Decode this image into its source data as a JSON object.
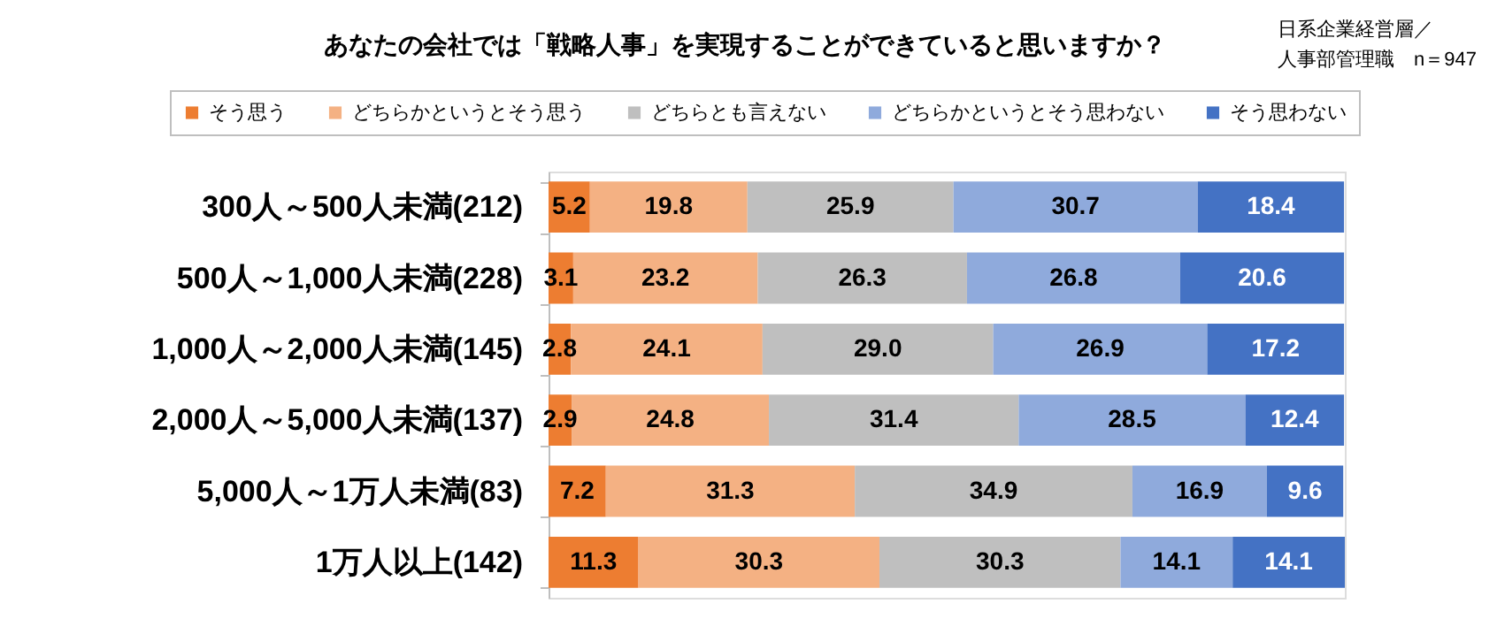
{
  "chart_data": {
    "type": "bar",
    "orientation": "horizontal",
    "stacked": true,
    "title": "あなたの会社では「戦略人事」を実現することができていると思いますか？",
    "annotations": [
      "日系企業経営層／",
      "人事部管理職　n＝947"
    ],
    "categories": [
      "300人～500人未満(212)",
      "500人～1,000人未満(228)",
      "1,000人～2,000人未満(145)",
      "2,000人～5,000人未満(137)",
      "5,000人～1万人未満(83)",
      "1万人以上(142)"
    ],
    "series": [
      {
        "name": "そう思う",
        "color": "#ed7d31",
        "values": [
          5.2,
          3.1,
          2.8,
          2.9,
          7.2,
          11.3
        ],
        "value_labels": [
          "5.2",
          "3.1",
          "2.8",
          "2.9",
          "7.2",
          "11.3"
        ]
      },
      {
        "name": "どちらかというとそう思う",
        "color": "#f4b183",
        "values": [
          19.8,
          23.2,
          24.1,
          24.8,
          31.3,
          30.3
        ],
        "value_labels": [
          "19.8",
          "23.2",
          "24.1",
          "24.8",
          "31.3",
          "30.3"
        ]
      },
      {
        "name": "どちらとも言えない",
        "color": "#bfbfbf",
        "values": [
          25.9,
          26.3,
          29.0,
          31.4,
          34.9,
          30.3
        ],
        "value_labels": [
          "25.9",
          "26.3",
          "29.0",
          "31.4",
          "34.9",
          "30.3"
        ]
      },
      {
        "name": "どちらかというとそう思わない",
        "color": "#8faadc",
        "values": [
          30.7,
          26.8,
          26.9,
          28.5,
          16.9,
          14.1
        ],
        "value_labels": [
          "30.7",
          "26.8",
          "26.9",
          "28.5",
          "16.9",
          "14.1"
        ]
      },
      {
        "name": "そう思わない",
        "color": "#4472c4",
        "values": [
          18.4,
          20.6,
          17.2,
          12.4,
          9.6,
          14.1
        ],
        "value_labels": [
          "18.4",
          "20.6",
          "17.2",
          "12.4",
          "9.6",
          "14.1"
        ]
      }
    ],
    "xlim": [
      0,
      100.1
    ],
    "legend": "top",
    "tick_labels": "y"
  }
}
